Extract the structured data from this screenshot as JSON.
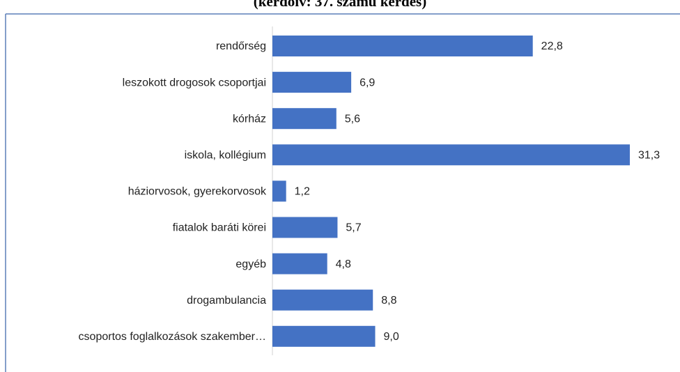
{
  "chart_data": {
    "type": "bar",
    "orientation": "horizontal",
    "title": "(kérdőív: 37. számú kérdés)",
    "categories": [
      "rendőrség",
      "leszokott drogosok csoportjai",
      "kórház",
      "iskola, kollégium",
      "háziorvosok, gyerekorvosok",
      "fiatalok baráti körei",
      "egyéb",
      "drogambulancia",
      "csoportos foglalkozások szakember…"
    ],
    "values": [
      22.8,
      6.9,
      5.6,
      31.3,
      1.2,
      5.7,
      4.8,
      8.8,
      9.0
    ],
    "value_labels": [
      "22,8",
      "6,9",
      "5,6",
      "31,3",
      "1,2",
      "5,7",
      "4,8",
      "8,8",
      "9,0"
    ],
    "color": "#4472c4"
  }
}
